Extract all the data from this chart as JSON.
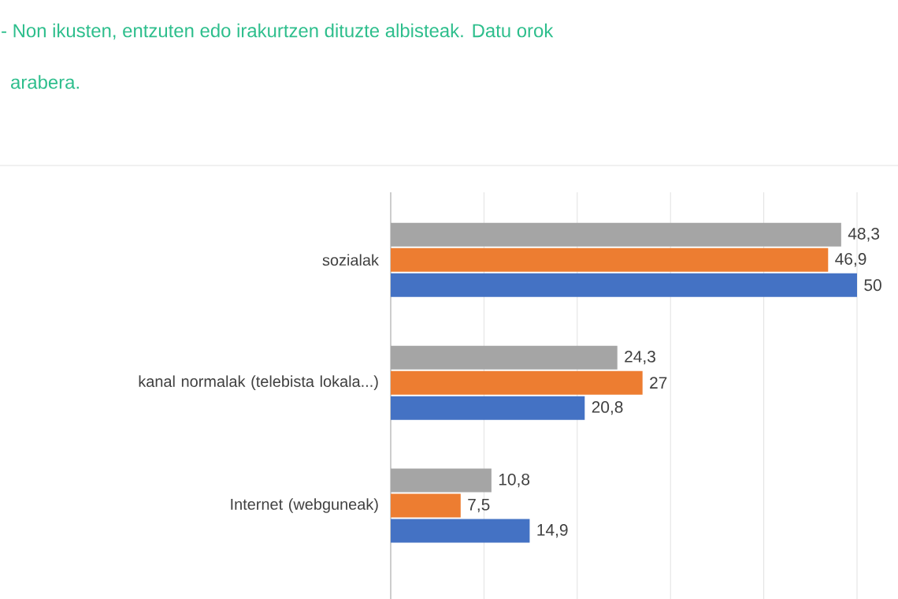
{
  "chart_data": {
    "type": "bar",
    "orientation": "horizontal",
    "title": "- Non ikusten, entzuten edo irakurtzen dituzte albisteak. Datu orok",
    "subtitle": "arabera.",
    "categories": [
      "sozialak",
      "kanal normalak (telebista lokala...)",
      "Internet (webguneak)"
    ],
    "series": [
      {
        "color": "#a5a5a5",
        "values": [
          48.3,
          24.3,
          10.8
        ],
        "value_labels": [
          "48,3",
          "24,3",
          "10,8"
        ]
      },
      {
        "color": "#ed7d31",
        "values": [
          46.9,
          27,
          7.5
        ],
        "value_labels": [
          "46,9",
          "27",
          "7,5"
        ]
      },
      {
        "color": "#4472c4",
        "values": [
          50,
          20.8,
          14.9
        ],
        "value_labels": [
          "50",
          "20,8",
          "14,9"
        ]
      }
    ],
    "xlim": [
      0,
      50
    ],
    "xticks": [
      {
        "value": 0,
        "label": null
      },
      {
        "value": 10,
        "label": null
      },
      {
        "value": 20,
        "label": null
      },
      {
        "value": 30,
        "label": null
      },
      {
        "value": 40,
        "label": null
      },
      {
        "value": 50,
        "label": null
      }
    ],
    "grid": "x",
    "tick_labels": "y"
  }
}
